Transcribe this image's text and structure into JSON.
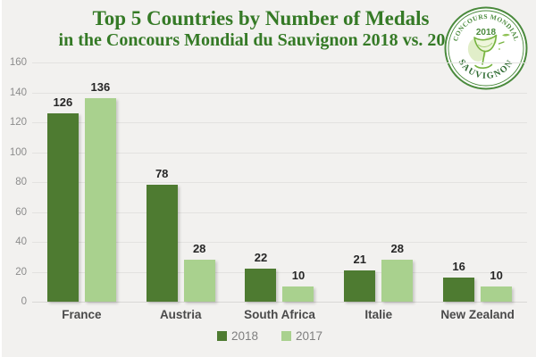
{
  "page": {
    "background": "#f2f1ef",
    "gridline_color": "#e3e2e0"
  },
  "header": {
    "title_line1": "Top 5 Countries by Number of Medals",
    "title_line2": "in the Concours Mondial du Sauvignon 2018 vs. 2017",
    "title_color": "#357a26"
  },
  "badge": {
    "top_text": "CONCOURS MONDIAL",
    "year": "2018",
    "bottom_text": "SAUVIGNON",
    "ring_color": "#4a8a3c",
    "bottom_text_color": "#2e6b31",
    "glass_color": "#76b33f"
  },
  "chart_data": {
    "type": "bar",
    "title": "Top 5 Countries by Number of Medals in the Concours Mondial du Sauvignon 2018 vs. 2017",
    "categories": [
      "France",
      "Austria",
      "South Africa",
      "Italie",
      "New Zealand"
    ],
    "series": [
      {
        "name": "2018",
        "color": "#4e7b31",
        "values": [
          126,
          78,
          22,
          21,
          16
        ]
      },
      {
        "name": "2017",
        "color": "#a9d18e",
        "values": [
          136,
          28,
          10,
          28,
          10
        ]
      }
    ],
    "ylim": [
      0,
      160
    ],
    "yticks": [
      0,
      20,
      40,
      60,
      80,
      100,
      120,
      140,
      160
    ],
    "grid": true,
    "legend_position": "bottom",
    "value_labels": true
  }
}
